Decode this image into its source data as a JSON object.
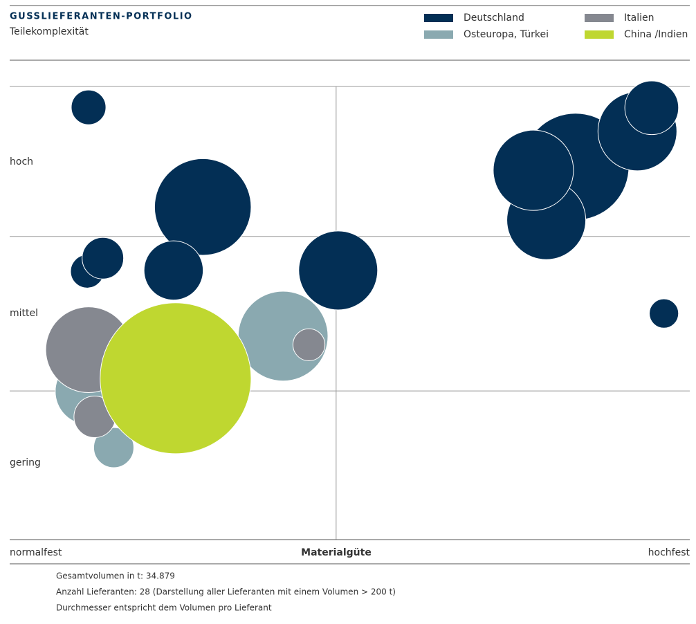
{
  "chart_data": {
    "type": "bubble",
    "title": "GUSSLIEFERANTEN-PORTFOLIO",
    "subtitle": "Teilekomplexität",
    "x_axis_label": "Materialgüte",
    "x_end_labels": [
      "normalfest",
      "hochfest"
    ],
    "y_category_labels": [
      "hoch",
      "mittel",
      "gering"
    ],
    "xlim": [
      0,
      100
    ],
    "ylim": [
      0,
      100
    ],
    "xticks": [
      48
    ],
    "yticks": [
      32.8,
      66.9,
      100
    ],
    "series": [
      {
        "name": "Deutschland",
        "color": "#032f55",
        "x": [
          11.6,
          28.4,
          11.4,
          13.7,
          24.1,
          48.3,
          83.2,
          78.9,
          92.3,
          77.0,
          94.4,
          96.2
        ],
        "values": [
          95.4,
          73.4,
          59.2,
          62.1,
          59.4,
          59.4,
          82.3,
          70.5,
          90.1,
          81.5,
          95.3,
          49.9
        ],
        "sizes": [
          5.1,
          14.2,
          4.9,
          6.1,
          8.7,
          11.6,
          15.7,
          11.6,
          11.6,
          11.8,
          7.9,
          4.3
        ]
      },
      {
        "name": "Italien",
        "color": "#858890",
        "x": [
          11.6,
          12.5,
          44.0
        ],
        "values": [
          41.9,
          27.1,
          43.0
        ],
        "sizes": [
          12.6,
          6.1,
          4.7
        ]
      },
      {
        "name": "Osteuropa, Türkei",
        "color": "#8aa9b0",
        "x": [
          40.2,
          11.6,
          15.3
        ],
        "values": [
          44.9,
          32.7,
          20.3
        ],
        "sizes": [
          13.2,
          9.8,
          5.9
        ]
      },
      {
        "name": "China /Indien",
        "color": "#bfd730",
        "x": [
          24.4
        ],
        "values": [
          35.6
        ],
        "sizes": [
          22.2
        ]
      }
    ],
    "notes": [
      "Gesamtvolumen in t: 34.879",
      "Anzahl Lieferanten: 28 (Darstellung aller Lieferanten mit einem Volumen > 200 t)",
      "Durchmesser entspricht dem Volumen pro Lieferant"
    ]
  }
}
